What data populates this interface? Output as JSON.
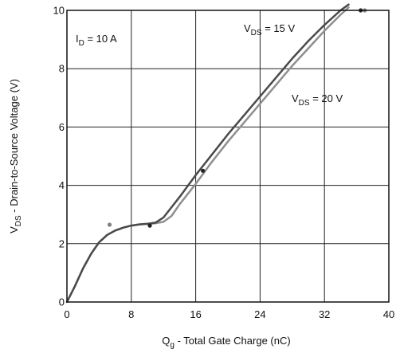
{
  "chart_data": {
    "type": "line",
    "xlabel": {
      "main": "Q",
      "sub": "g",
      "rest": " - Total Gate Charge (nC)"
    },
    "ylabel": {
      "main": "V",
      "sub": "DS",
      "rest": " - Drain-to-Source Voltage (V)"
    },
    "xlim": [
      0,
      40
    ],
    "ylim": [
      0,
      10
    ],
    "xticks": [
      "0",
      "8",
      "16",
      "24",
      "32",
      "40"
    ],
    "yticks": [
      "0",
      "2",
      "4",
      "6",
      "8",
      "10"
    ],
    "grid": true,
    "annotations": [
      {
        "main": "I",
        "sub": "D",
        "rest": " = 10 A"
      },
      {
        "main": "V",
        "sub": "DS",
        "rest": " = 15 V"
      },
      {
        "main": "V",
        "sub": "DS",
        "rest": " = 20 V"
      }
    ],
    "series": [
      {
        "name": "V_DS = 15 V",
        "color": "#4a4a4a",
        "x": [
          0,
          1,
          2,
          3,
          4,
          5,
          6,
          7,
          8,
          9,
          10,
          11,
          12,
          14,
          16,
          18,
          20,
          22,
          24,
          26,
          28,
          30,
          32,
          34,
          35
        ],
        "y": [
          0,
          0.55,
          1.15,
          1.65,
          2.05,
          2.3,
          2.45,
          2.55,
          2.62,
          2.66,
          2.68,
          2.72,
          2.9,
          3.6,
          4.35,
          5.05,
          5.75,
          6.4,
          7.05,
          7.7,
          8.35,
          8.95,
          9.5,
          10.0,
          10.2
        ]
      },
      {
        "name": "V_DS = 20 V",
        "color": "#8f8f8f",
        "x": [
          0,
          1,
          2,
          3,
          4,
          5,
          6,
          7,
          8,
          9,
          10,
          11,
          12,
          13,
          14,
          16,
          18,
          20,
          22,
          24,
          26,
          28,
          30,
          32,
          34,
          35
        ],
        "y": [
          0,
          0.55,
          1.15,
          1.65,
          2.05,
          2.3,
          2.45,
          2.55,
          2.62,
          2.66,
          2.68,
          2.7,
          2.75,
          2.95,
          3.35,
          4.05,
          4.8,
          5.5,
          6.15,
          6.8,
          7.45,
          8.1,
          8.7,
          9.3,
          9.85,
          10.1
        ]
      }
    ],
    "markers": [
      {
        "x": 5.3,
        "y": 2.65,
        "color": "#808080"
      },
      {
        "x": 10.3,
        "y": 2.62,
        "color": "#222222"
      },
      {
        "x": 16.9,
        "y": 4.5,
        "color": "#222222"
      },
      {
        "x": 36.5,
        "y": 10.0,
        "color": "#222222"
      },
      {
        "x": 37.0,
        "y": 10.0,
        "color": "#808080"
      }
    ]
  }
}
